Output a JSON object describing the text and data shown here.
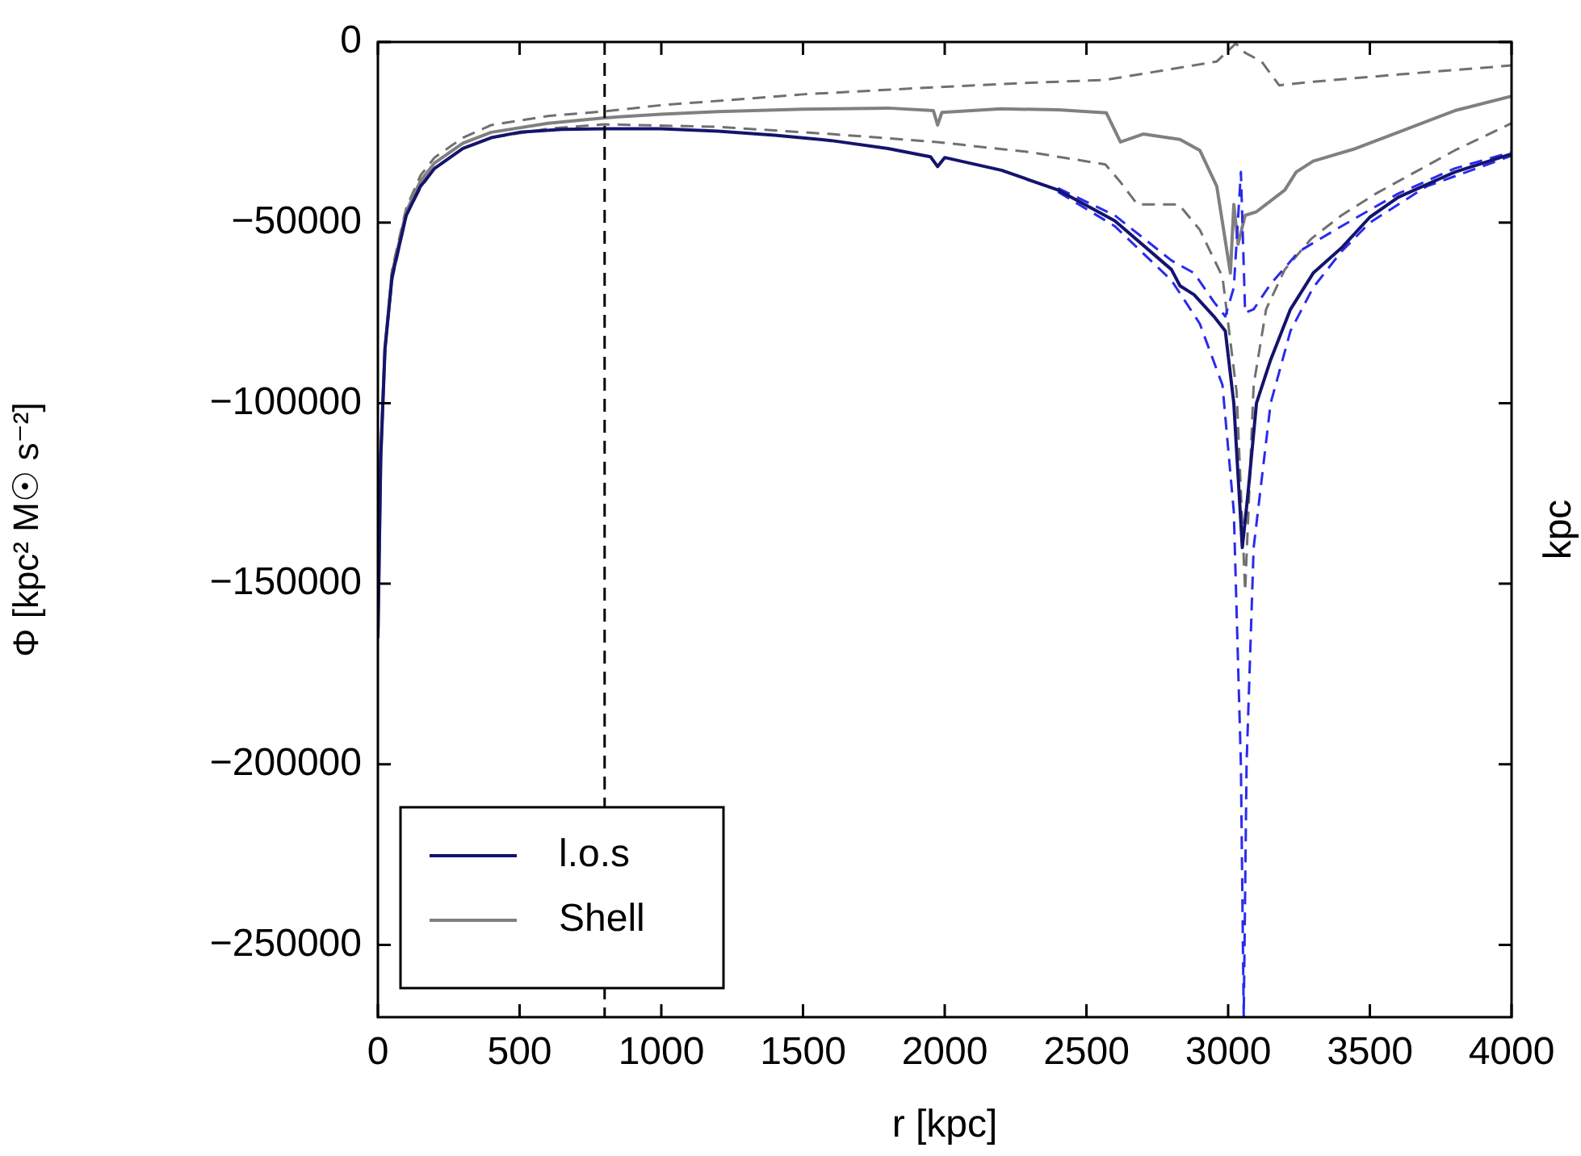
{
  "chart_data": {
    "type": "line",
    "xlabel": "r [kpc]",
    "ylabel": "Φ [kpc² M☉ s⁻²]",
    "xlim": [
      0,
      4000
    ],
    "xticks": [
      0,
      500,
      1000,
      1500,
      2000,
      2500,
      3000,
      3500,
      4000
    ],
    "ylim": [
      -270000,
      0
    ],
    "yticks": [
      -250000,
      -200000,
      -150000,
      -100000,
      -50000,
      0
    ],
    "grid": false,
    "legend": "bottom left",
    "marker": "none",
    "ref_lines": [
      {
        "axis": "x",
        "value": 800,
        "color": "#000000",
        "line_style": "dashed"
      }
    ],
    "annotations": [
      "kpc"
    ],
    "series": [
      {
        "name": "l.o.s",
        "color": "#14146e",
        "line_style": "solid",
        "x": [
          0,
          10,
          25,
          50,
          100,
          150,
          200,
          300,
          400,
          500,
          650,
          800,
          1000,
          1200,
          1400,
          1600,
          1800,
          1950,
          1975,
          2000,
          2200,
          2400,
          2600,
          2800,
          2830,
          2880,
          2950,
          2990,
          3020,
          3050,
          3070,
          3100,
          3150,
          3220,
          3300,
          3400,
          3500,
          3600,
          3800,
          4000
        ],
        "values": [
          -165000,
          -115000,
          -85000,
          -65000,
          -48000,
          -40000,
          -35000,
          -29500,
          -26500,
          -25000,
          -24200,
          -24000,
          -24000,
          -24700,
          -25800,
          -27300,
          -29500,
          -31800,
          -34500,
          -32000,
          -35500,
          -41000,
          -49500,
          -63000,
          -67500,
          -70000,
          -76000,
          -80000,
          -100000,
          -140000,
          -125000,
          -100000,
          -88000,
          -74000,
          -64000,
          -57000,
          -48500,
          -43000,
          -36000,
          -31000
        ]
      },
      {
        "color": "#2a2aee",
        "line_style": "dashed",
        "x": [
          2400,
          2600,
          2800,
          2900,
          2980,
          3020,
          3045,
          3055,
          3065,
          3090,
          3150,
          3220,
          3300,
          3400,
          3500,
          3700,
          4000
        ],
        "values": [
          -41500,
          -51000,
          -66000,
          -78000,
          -95000,
          -130000,
          -200000,
          -270000,
          -200000,
          -140000,
          -100000,
          -80000,
          -68000,
          -58000,
          -50000,
          -40000,
          -31500
        ]
      },
      {
        "color": "#2a2aee",
        "line_style": "dashed",
        "x": [
          2400,
          2600,
          2800,
          2880,
          2950,
          2990,
          3020,
          3045,
          3060,
          3090,
          3150,
          3250,
          3400,
          3600,
          3800,
          4000
        ],
        "values": [
          -40500,
          -48000,
          -60500,
          -64000,
          -72000,
          -76000,
          -68000,
          -36000,
          -75000,
          -74000,
          -67000,
          -58000,
          -51000,
          -42000,
          -35000,
          -30500
        ]
      },
      {
        "name": "Shell",
        "color": "#808080",
        "line_style": "solid",
        "x": [
          0,
          10,
          25,
          50,
          100,
          150,
          200,
          300,
          400,
          600,
          800,
          1000,
          1200,
          1500,
          1800,
          1960,
          1975,
          1990,
          2200,
          2400,
          2570,
          2620,
          2700,
          2830,
          2900,
          2960,
          2990,
          3008,
          3020,
          3035,
          3060,
          3100,
          3200,
          3240,
          3300,
          3450,
          3600,
          3800,
          4000
        ],
        "values": [
          -165000,
          -115000,
          -85000,
          -64000,
          -47000,
          -38500,
          -33500,
          -28000,
          -25000,
          -22500,
          -21000,
          -20000,
          -19300,
          -18600,
          -18300,
          -19000,
          -23000,
          -19500,
          -18500,
          -18800,
          -19600,
          -27700,
          -25500,
          -27000,
          -30000,
          -40000,
          -55000,
          -64000,
          -45000,
          -56000,
          -48000,
          -47000,
          -41000,
          -36000,
          -33000,
          -29500,
          -25000,
          -19000,
          -15000
        ]
      },
      {
        "color": "#707070",
        "line_style": "dashed",
        "x": [
          0,
          10,
          25,
          50,
          100,
          150,
          200,
          300,
          400,
          600,
          800,
          1000,
          1500,
          1972,
          2300,
          2567,
          2800,
          2960,
          3027,
          3060,
          3118,
          3180,
          3300,
          3600,
          4000
        ],
        "values": [
          -165000,
          -115000,
          -85000,
          -63000,
          -46000,
          -37000,
          -32000,
          -26500,
          -23000,
          -20500,
          -19200,
          -17500,
          -14500,
          -12500,
          -11300,
          -10500,
          -7500,
          -5400,
          -400,
          -3000,
          -5400,
          -12000,
          -11000,
          -9000,
          -6500
        ]
      },
      {
        "color": "#707070",
        "line_style": "dashed",
        "x": [
          0,
          10,
          25,
          50,
          100,
          150,
          200,
          300,
          400,
          600,
          800,
          1200,
          1600,
          1972,
          2300,
          2567,
          2620,
          2680,
          2826,
          2900,
          2980,
          3030,
          3060,
          3090,
          3134,
          3200,
          3293,
          3400,
          3521,
          3800,
          4000
        ],
        "values": [
          -165000,
          -115000,
          -85000,
          -66000,
          -48000,
          -40500,
          -35000,
          -29500,
          -26500,
          -24000,
          -22800,
          -23500,
          -25500,
          -27700,
          -30500,
          -33900,
          -38800,
          -45000,
          -45000,
          -52000,
          -65000,
          -97000,
          -152000,
          -95000,
          -74000,
          -63000,
          -54500,
          -48000,
          -42000,
          -30000,
          -22500
        ]
      }
    ]
  }
}
